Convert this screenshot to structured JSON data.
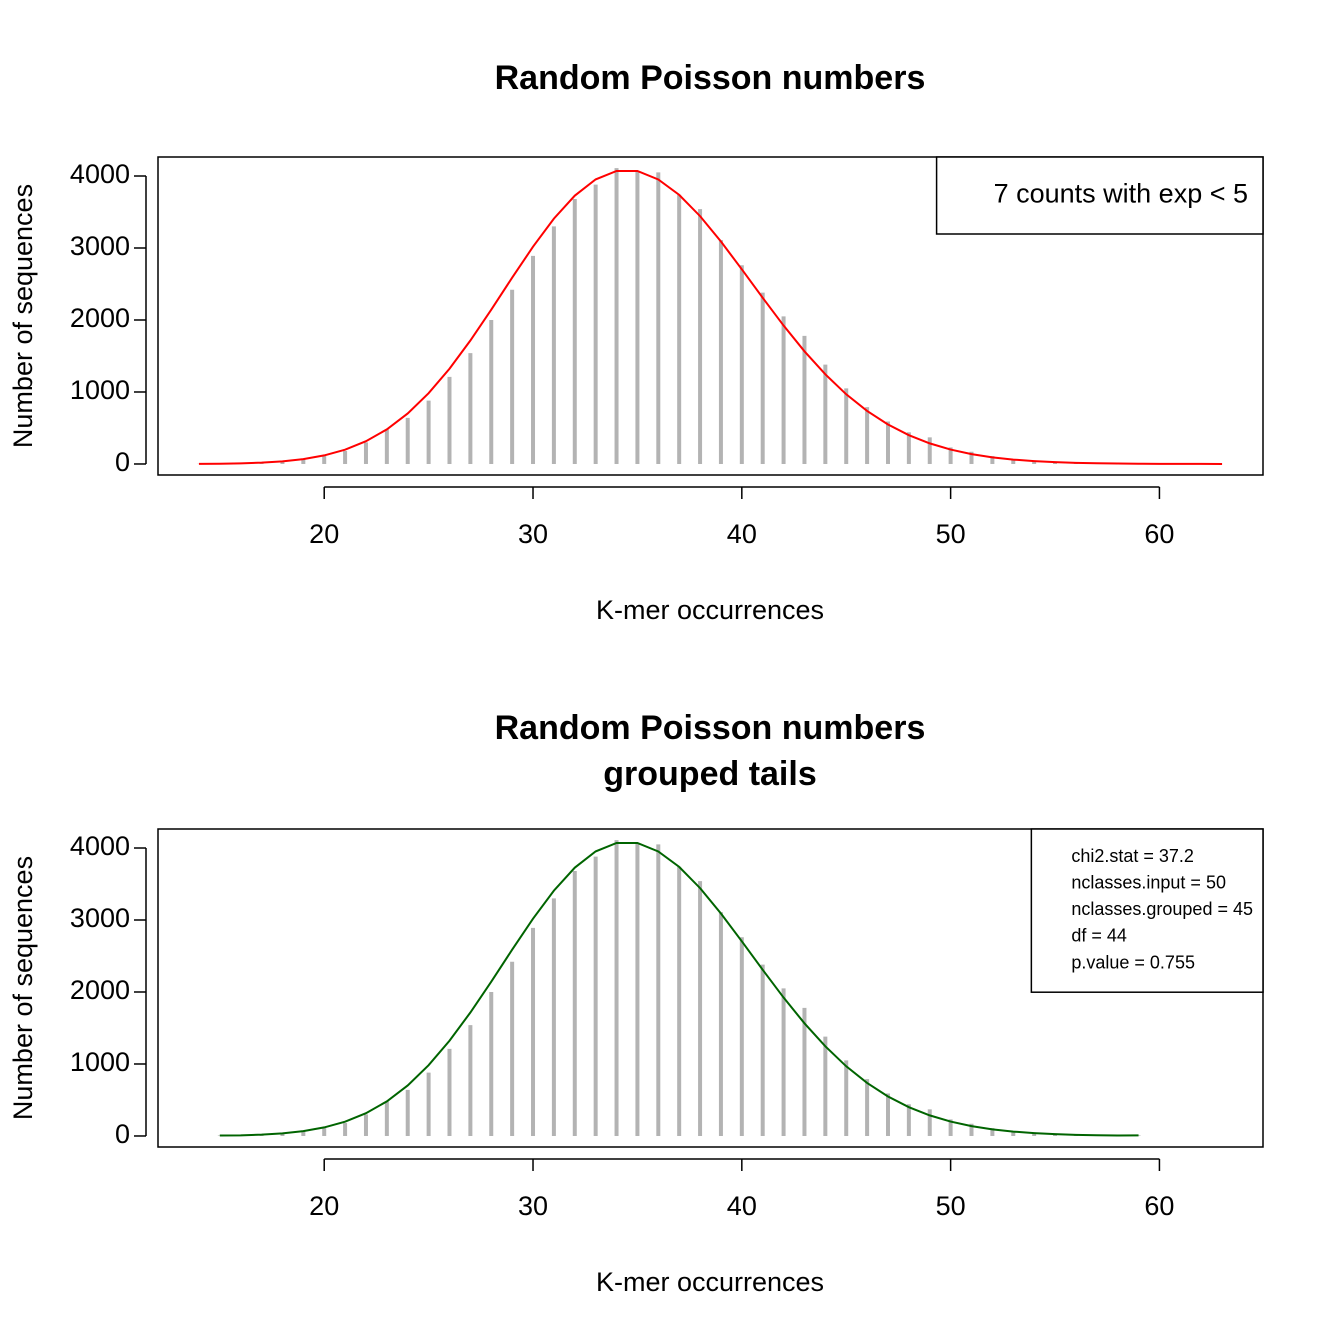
{
  "chart_data": [
    {
      "type": "needle-line",
      "title": "Random Poisson numbers",
      "x_label": "K-mer occurrences",
      "y_label": "Number of sequences",
      "x": [
        14,
        15,
        16,
        17,
        18,
        19,
        20,
        21,
        22,
        23,
        24,
        25,
        26,
        27,
        28,
        29,
        30,
        31,
        32,
        33,
        34,
        35,
        36,
        37,
        38,
        39,
        40,
        41,
        42,
        43,
        44,
        45,
        46,
        47,
        48,
        49,
        50,
        51,
        52,
        53,
        54,
        55,
        56,
        57,
        58,
        59,
        60,
        61,
        62,
        63
      ],
      "series": [
        {
          "style": "needle",
          "color": "#b3b3b3",
          "values": [
            2,
            5,
            8,
            20,
            35,
            70,
            110,
            180,
            300,
            480,
            640,
            880,
            1210,
            1540,
            2000,
            2420,
            2890,
            3300,
            3680,
            3880,
            4110,
            4070,
            4050,
            3740,
            3540,
            3110,
            2760,
            2380,
            2050,
            1780,
            1380,
            1050,
            790,
            590,
            440,
            370,
            230,
            170,
            110,
            70,
            40,
            30,
            15,
            10,
            6,
            4,
            2,
            1,
            1,
            0
          ]
        },
        {
          "style": "line",
          "color": "#ff0000",
          "values": [
            2,
            4,
            9,
            19,
            37,
            68,
            119,
            199,
            316,
            481,
            702,
            983,
            1323,
            1715,
            2144,
            2587,
            3018,
            3408,
            3727,
            3953,
            4070,
            4070,
            3952,
            3738,
            3443,
            3090,
            2704,
            2308,
            1923,
            1565,
            1245,
            968,
            737,
            549,
            400,
            286,
            200,
            137,
            92,
            61,
            40,
            25,
            16,
            10,
            6,
            4,
            2,
            1,
            1,
            0
          ]
        }
      ],
      "xlim": [
        12.04,
        64.96
      ],
      "xticks": [
        20,
        30,
        40,
        50,
        60
      ],
      "ylim": [
        -153,
        4264
      ],
      "yticks": [
        0,
        1000,
        2000,
        3000,
        4000
      ],
      "legend_position": "topright",
      "annotation": [
        "7 counts with exp < 5"
      ]
    },
    {
      "type": "needle-line",
      "title": "Random Poisson numbers",
      "subtitle": "grouped tails",
      "x_label": "K-mer occurrences",
      "y_label": "Number of sequences",
      "x": [
        15,
        16,
        17,
        18,
        19,
        20,
        21,
        22,
        23,
        24,
        25,
        26,
        27,
        28,
        29,
        30,
        31,
        32,
        33,
        34,
        35,
        36,
        37,
        38,
        39,
        40,
        41,
        42,
        43,
        44,
        45,
        46,
        47,
        48,
        49,
        50,
        51,
        52,
        53,
        54,
        55,
        56,
        57,
        58,
        59
      ],
      "series": [
        {
          "style": "needle",
          "color": "#b3b3b3",
          "values": [
            7,
            8,
            20,
            35,
            70,
            110,
            180,
            300,
            480,
            640,
            880,
            1210,
            1540,
            2000,
            2420,
            2890,
            3300,
            3680,
            3880,
            4110,
            4070,
            4050,
            3740,
            3540,
            3110,
            2760,
            2380,
            2050,
            1780,
            1380,
            1050,
            790,
            590,
            440,
            370,
            230,
            170,
            110,
            70,
            40,
            30,
            15,
            10,
            6,
            8
          ]
        },
        {
          "style": "line",
          "color": "#006400",
          "values": [
            6,
            9,
            19,
            37,
            68,
            119,
            199,
            316,
            481,
            702,
            983,
            1323,
            1715,
            2144,
            2587,
            3018,
            3408,
            3727,
            3953,
            4070,
            4070,
            3952,
            3738,
            3443,
            3090,
            2704,
            2308,
            1923,
            1565,
            1245,
            968,
            737,
            549,
            400,
            286,
            200,
            137,
            92,
            61,
            40,
            25,
            16,
            10,
            6,
            8
          ]
        }
      ],
      "xlim": [
        12.04,
        64.96
      ],
      "xticks": [
        20,
        30,
        40,
        50,
        60
      ],
      "ylim": [
        -153,
        4264
      ],
      "yticks": [
        0,
        1000,
        2000,
        3000,
        4000
      ],
      "legend_position": "topright",
      "annotation": [
        "chi2.stat = 37.2",
        "nclasses.input = 50",
        "nclasses.grouped = 45",
        "df = 44",
        "p.value = 0.755"
      ]
    }
  ]
}
